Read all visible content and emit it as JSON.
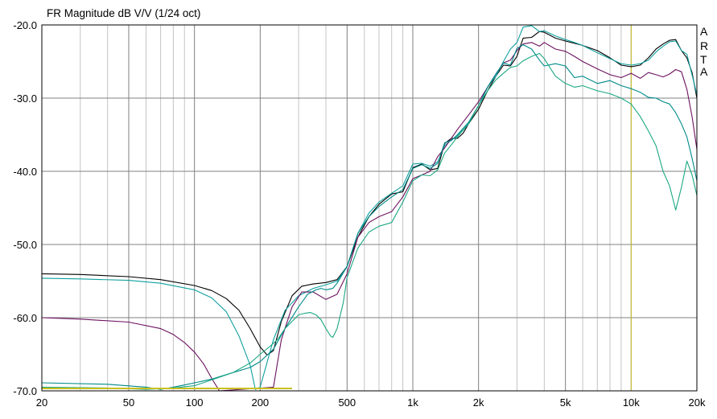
{
  "chart_data": {
    "type": "line",
    "title": "FR Magnitude dB V/V (1/24 oct)",
    "brand": [
      "A",
      "R",
      "T",
      "A"
    ],
    "x_scale": "log",
    "xlim": [
      20,
      20000
    ],
    "ylim": [
      -70,
      -20
    ],
    "grid": true,
    "x_tick_labels": [
      {
        "value": 20,
        "label": "20"
      },
      {
        "value": 50,
        "label": "50"
      },
      {
        "value": 100,
        "label": "100"
      },
      {
        "value": 200,
        "label": "200"
      },
      {
        "value": 500,
        "label": "500"
      },
      {
        "value": 1000,
        "label": "1k"
      },
      {
        "value": 2000,
        "label": "2k"
      },
      {
        "value": 5000,
        "label": "5k"
      },
      {
        "value": 10000,
        "label": "10k"
      },
      {
        "value": 20000,
        "label": "20k"
      }
    ],
    "y_tick_labels": [
      {
        "value": -20,
        "label": "-20.0"
      },
      {
        "value": -30,
        "label": "-30.0"
      },
      {
        "value": -40,
        "label": "-40.0"
      },
      {
        "value": -50,
        "label": "-50.0"
      },
      {
        "value": -60,
        "label": "-60.0"
      },
      {
        "value": -70,
        "label": "-70.0"
      }
    ],
    "marker": {
      "x": 10000,
      "color": "#c8c020"
    },
    "series": [
      {
        "color": "#000000",
        "x": [
          20,
          30,
          50,
          70,
          100,
          120,
          140,
          160,
          180,
          200,
          215,
          230,
          250,
          280,
          310,
          350,
          400,
          450,
          500,
          560,
          630,
          700,
          800,
          900,
          1000,
          1100,
          1200,
          1300,
          1400,
          1500,
          1600,
          1700,
          1800,
          2000,
          2200,
          2400,
          2600,
          2800,
          3000,
          3200,
          3500,
          3800,
          4000,
          4500,
          5000,
          5500,
          6000,
          7000,
          8000,
          9000,
          10000,
          11000,
          12000,
          13000,
          14000,
          15000,
          16000,
          17000,
          18000,
          19000,
          20000
        ],
        "y": [
          -54,
          -54.1,
          -54.4,
          -54.8,
          -55.6,
          -56.3,
          -57.4,
          -59,
          -61.5,
          -64,
          -65.1,
          -64.5,
          -60.5,
          -57,
          -55.7,
          -55.4,
          -55.2,
          -54.8,
          -53,
          -49,
          -46.2,
          -44.5,
          -43.1,
          -42.8,
          -39.5,
          -39,
          -39.8,
          -39.6,
          -36.2,
          -35.5,
          -35.5,
          -34.8,
          -33.5,
          -31.5,
          -29,
          -27,
          -25.5,
          -25.6,
          -24.3,
          -21.8,
          -21.7,
          -20.9,
          -21,
          -21.8,
          -22.2,
          -22.5,
          -22.8,
          -23.5,
          -24.5,
          -25.5,
          -25.7,
          -25.5,
          -24.5,
          -23.3,
          -22.6,
          -22.1,
          -22,
          -23.5,
          -24.5,
          -26.5,
          -30
        ]
      },
      {
        "color": "#10a0a0",
        "x": [
          20,
          30,
          50,
          70,
          100,
          120,
          140,
          160,
          180,
          190,
          200,
          230,
          260,
          300,
          350,
          400,
          450,
          500,
          560,
          630,
          700,
          800,
          900,
          1000,
          1100,
          1200,
          1300,
          1400,
          1500,
          1600,
          1800,
          2000,
          2200,
          2400,
          2600,
          2800,
          3000,
          3200,
          3500,
          3800,
          4000,
          4500,
          5000,
          5500,
          6000,
          7000,
          8000,
          9000,
          10000,
          11000,
          12000,
          13000,
          14000,
          15000,
          16000,
          17000,
          18000,
          20000
        ],
        "y": [
          -54.6,
          -54.7,
          -54.9,
          -55.3,
          -56.2,
          -57.3,
          -59.2,
          -62.5,
          -66.5,
          -69.8,
          -69.5,
          -63,
          -59,
          -57,
          -56,
          -55.5,
          -55,
          -53,
          -48.5,
          -45.7,
          -44.2,
          -43,
          -42,
          -39,
          -38.9,
          -39.3,
          -38.7,
          -36.5,
          -35.7,
          -35.2,
          -33.5,
          -31,
          -28.5,
          -27,
          -25,
          -23.3,
          -22.4,
          -20.3,
          -20.1,
          -20.9,
          -20.8,
          -21.5,
          -22,
          -22.4,
          -22.8,
          -23.8,
          -24.6,
          -25.3,
          -25.5,
          -25.3,
          -24.8,
          -23.7,
          -22.9,
          -22.3,
          -22.2,
          -23.5,
          -24,
          -29.5
        ]
      },
      {
        "color": "#6c1260",
        "x": [
          20,
          30,
          50,
          70,
          80,
          90,
          100,
          110,
          120,
          130,
          230,
          250,
          280,
          310,
          350,
          400,
          450,
          500,
          560,
          630,
          700,
          800,
          900,
          1000,
          1100,
          1200,
          1300,
          1400,
          1500,
          1600,
          1800,
          2000,
          2200,
          2400,
          2600,
          2800,
          3000,
          3200,
          3500,
          3800,
          4000,
          4500,
          5000,
          5500,
          6000,
          7000,
          8000,
          9000,
          10000,
          11000,
          12000,
          13000,
          14000,
          15000,
          16000,
          17000,
          18000,
          19000,
          20000
        ],
        "y": [
          -60,
          -60.2,
          -60.6,
          -61.5,
          -62.3,
          -63.4,
          -64.7,
          -66.3,
          -68.3,
          -70,
          -69.5,
          -63,
          -58.5,
          -56.5,
          -56.5,
          -57.5,
          -56.8,
          -54,
          -49,
          -47,
          -46.2,
          -45.5,
          -43.5,
          -41,
          -40.5,
          -40,
          -38,
          -36.8,
          -35.5,
          -34.3,
          -32.3,
          -30.5,
          -28.5,
          -26.7,
          -25.2,
          -24.8,
          -23.5,
          -22.6,
          -22.4,
          -22.9,
          -22.4,
          -23.3,
          -23.6,
          -24.3,
          -25,
          -26,
          -26.8,
          -27.2,
          -26.6,
          -27.3,
          -26.5,
          -26.8,
          -27.1,
          -26.7,
          -26.1,
          -26.4,
          -28.8,
          -32.5,
          -37
        ]
      },
      {
        "color": "#008a8a",
        "x": [
          20,
          40,
          60,
          70,
          80,
          90,
          100,
          120,
          150,
          180,
          200,
          230,
          260,
          300,
          330,
          360,
          380,
          400,
          430,
          450,
          500,
          560,
          630,
          700,
          800,
          900,
          1000,
          1100,
          1200,
          1300,
          1400,
          1500,
          1600,
          1800,
          2000,
          2200,
          2400,
          2600,
          2800,
          3000,
          3200,
          3500,
          3800,
          4000,
          4500,
          5000,
          5500,
          6000,
          7000,
          8000,
          9000,
          10000,
          11000,
          12000,
          13000,
          14000,
          15000,
          16000,
          17000,
          18000,
          19000,
          20000
        ],
        "y": [
          -68.9,
          -69.1,
          -69.5,
          -69.8,
          -69.5,
          -69.2,
          -68.9,
          -68.4,
          -67.5,
          -66.8,
          -66,
          -64.3,
          -61.5,
          -58.5,
          -56.8,
          -56.2,
          -56,
          -56.2,
          -56,
          -55.3,
          -53,
          -48.5,
          -46.2,
          -44.8,
          -43.5,
          -42.5,
          -39.6,
          -39.1,
          -39.6,
          -38.9,
          -36.1,
          -35.8,
          -35,
          -33.3,
          -31,
          -28.5,
          -26.7,
          -25.2,
          -25.5,
          -23.2,
          -22.7,
          -23.3,
          -24.8,
          -25.6,
          -25.3,
          -25.6,
          -27.2,
          -27,
          -28,
          -27.6,
          -28.3,
          -28.7,
          -29.2,
          -29.9,
          -30,
          -30.5,
          -30.8,
          -32,
          -33.5,
          -35.3,
          -38.2,
          -41.3
        ]
      },
      {
        "color": "#1ba882",
        "x": [
          20,
          40,
          60,
          80,
          100,
          120,
          150,
          180,
          200,
          220,
          240,
          260,
          280,
          300,
          320,
          340,
          360,
          380,
          400,
          420,
          430,
          450,
          480,
          500,
          560,
          630,
          700,
          800,
          900,
          1000,
          1100,
          1200,
          1300,
          1400,
          1500,
          1600,
          1800,
          2000,
          2200,
          2400,
          2600,
          2800,
          3000,
          3200,
          3500,
          3800,
          4000,
          4500,
          5000,
          5500,
          6000,
          7000,
          8000,
          9000,
          10000,
          11000,
          12000,
          13000,
          14000,
          15000,
          16000,
          17000,
          18000,
          19000,
          20000
        ],
        "y": [
          -69.5,
          -69.6,
          -69.8,
          -69.6,
          -69.3,
          -68.5,
          -67.5,
          -66.2,
          -65,
          -64,
          -63,
          -61.5,
          -60.5,
          -59.6,
          -59.4,
          -59.3,
          -59.6,
          -60.3,
          -61.5,
          -62.5,
          -62.7,
          -61.5,
          -58,
          -54.5,
          -50.5,
          -48.3,
          -47.5,
          -47,
          -44.2,
          -41.3,
          -40.5,
          -40.6,
          -39.8,
          -37.5,
          -36.4,
          -35.3,
          -33.5,
          -31,
          -29,
          -27.5,
          -26.6,
          -25.8,
          -25.6,
          -24.9,
          -24.3,
          -23.9,
          -24.6,
          -27,
          -28,
          -28.5,
          -28.3,
          -29,
          -29.4,
          -30,
          -30.8,
          -32.5,
          -34.5,
          -36.5,
          -40,
          -42,
          -45.3,
          -42.2,
          -38.6,
          -40.5,
          -43.3
        ]
      }
    ]
  }
}
